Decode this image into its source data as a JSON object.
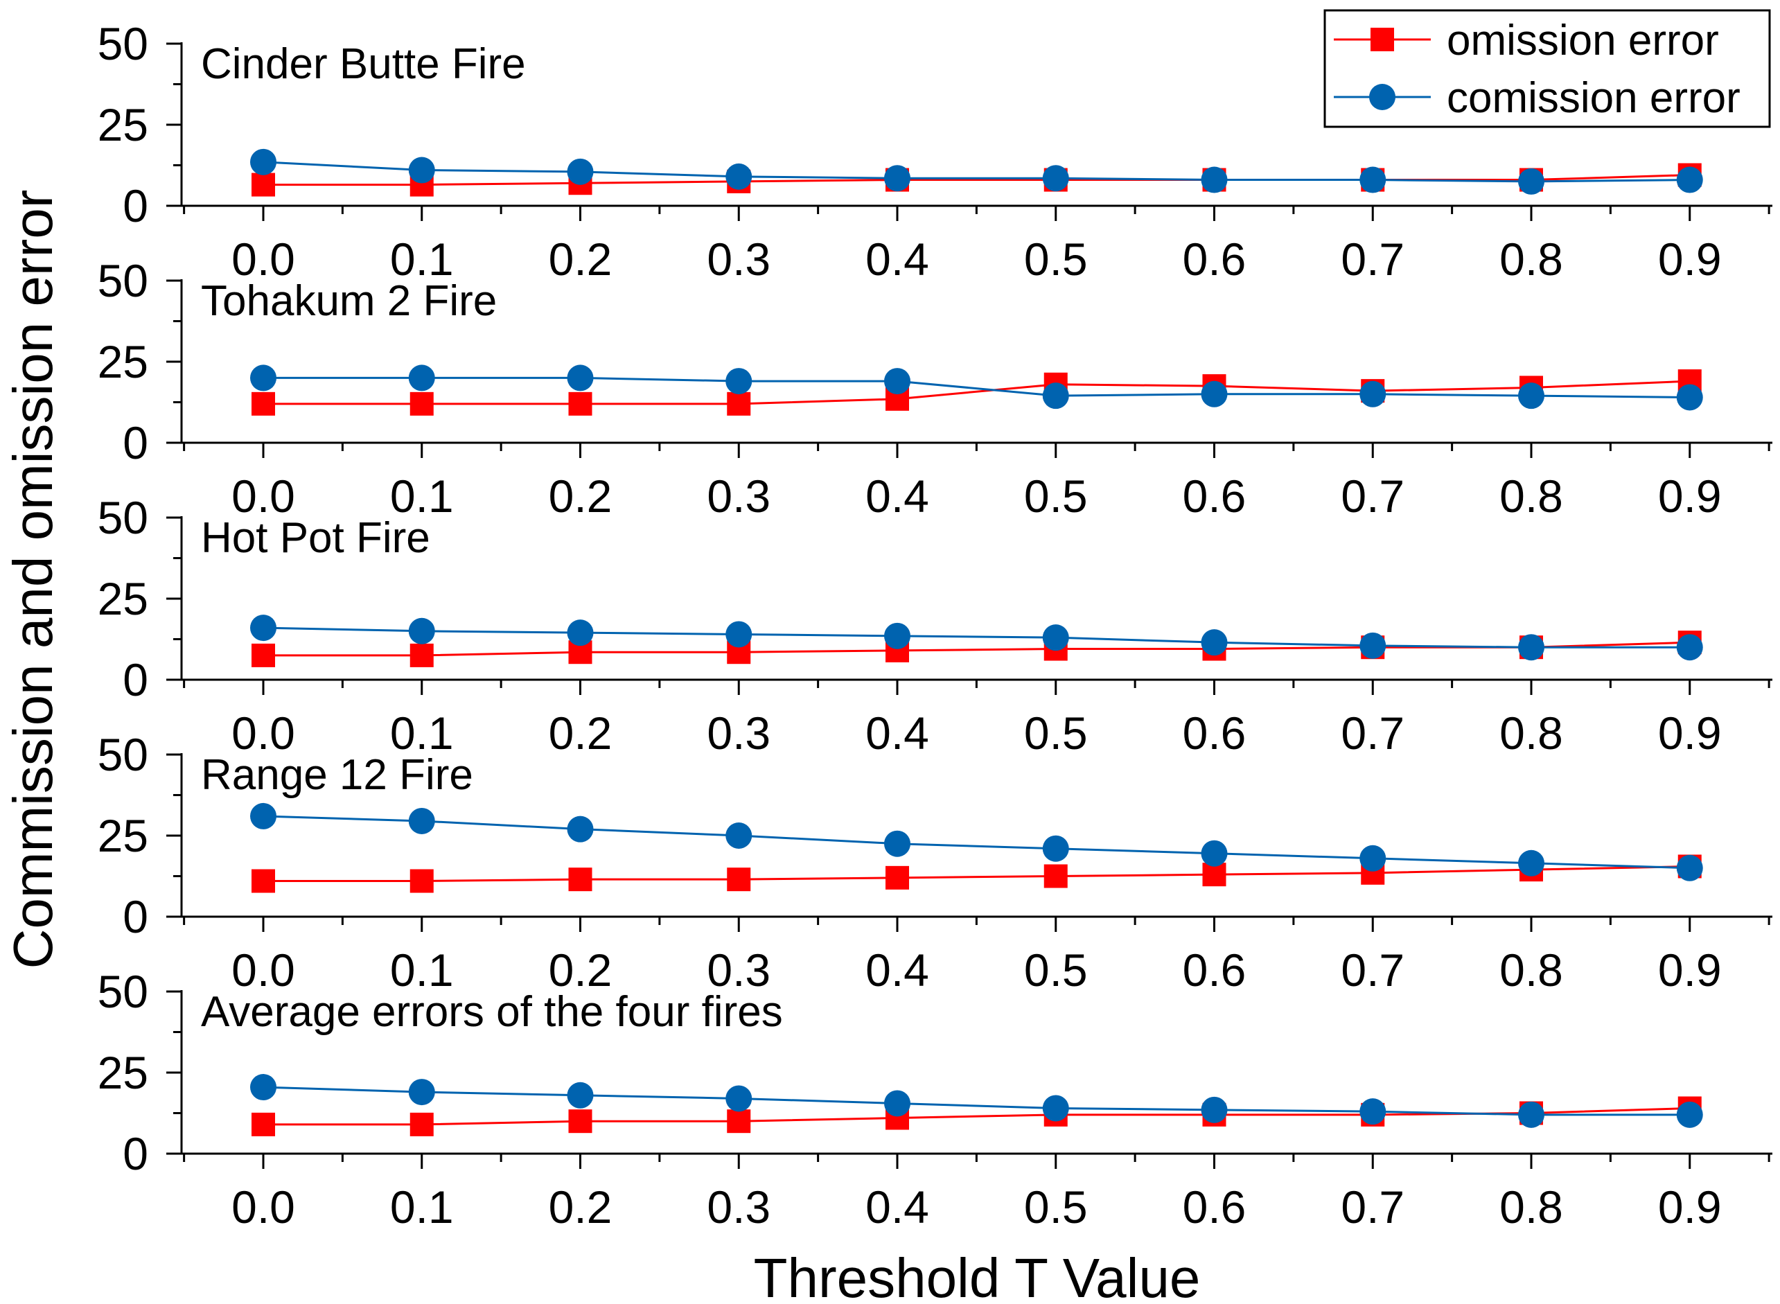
{
  "chart_data": {
    "type": "line",
    "ylabel": "Commission and omission error",
    "xlabel": "Threshold T Value",
    "x": [
      0.0,
      0.1,
      0.2,
      0.3,
      0.4,
      0.5,
      0.6,
      0.7,
      0.8,
      0.9
    ],
    "x_tick_labels": [
      "0.0",
      "0.1",
      "0.2",
      "0.3",
      "0.4",
      "0.5",
      "0.6",
      "0.7",
      "0.8",
      "0.9"
    ],
    "ylim": [
      0,
      50
    ],
    "y_ticks": [
      0,
      25,
      50
    ],
    "legend": {
      "position": "top-right",
      "entries": [
        {
          "name": "omission error",
          "color": "#ff0000",
          "marker": "square"
        },
        {
          "name": "comission error",
          "color": "#0063af",
          "marker": "circle"
        }
      ]
    },
    "panels": [
      {
        "title": "Cinder Butte Fire",
        "series": [
          {
            "name": "omission error",
            "values": [
              6.5,
              6.5,
              7,
              7.5,
              8,
              8,
              8,
              8,
              8,
              9.5
            ]
          },
          {
            "name": "comission error",
            "values": [
              13.5,
              11,
              10.5,
              9,
              8.5,
              8.5,
              8,
              8,
              7.5,
              8
            ]
          }
        ]
      },
      {
        "title": "Tohakum 2 Fire",
        "series": [
          {
            "name": "omission error",
            "values": [
              12,
              12,
              12,
              12,
              13.5,
              18,
              17.5,
              16,
              17,
              19
            ]
          },
          {
            "name": "comission error",
            "values": [
              20,
              20,
              20,
              19,
              19,
              14.5,
              15,
              15,
              14.5,
              14
            ]
          }
        ]
      },
      {
        "title": "Hot Pot Fire",
        "series": [
          {
            "name": "omission error",
            "values": [
              7.5,
              7.5,
              8.5,
              8.5,
              9,
              9.5,
              9.5,
              10,
              10,
              11.5
            ]
          },
          {
            "name": "comission error",
            "values": [
              16,
              15,
              14.5,
              14,
              13.5,
              13,
              11.5,
              10.5,
              10,
              10
            ]
          }
        ]
      },
      {
        "title": "Range 12 Fire",
        "series": [
          {
            "name": "omission error",
            "values": [
              11,
              11,
              11.5,
              11.5,
              12,
              12.5,
              13,
              13.5,
              14.5,
              15.5
            ]
          },
          {
            "name": "comission error",
            "values": [
              31,
              29.5,
              27,
              25,
              22.5,
              21,
              19.5,
              18,
              16.5,
              15
            ]
          }
        ]
      },
      {
        "title": "Average errors of the four fires",
        "series": [
          {
            "name": "omission error",
            "values": [
              9,
              9,
              10,
              10,
              11,
              12,
              12,
              12,
              12.5,
              14
            ]
          },
          {
            "name": "comission error",
            "values": [
              20.5,
              19,
              18,
              17,
              15.5,
              14,
              13.5,
              13,
              12,
              12
            ]
          }
        ]
      }
    ]
  }
}
